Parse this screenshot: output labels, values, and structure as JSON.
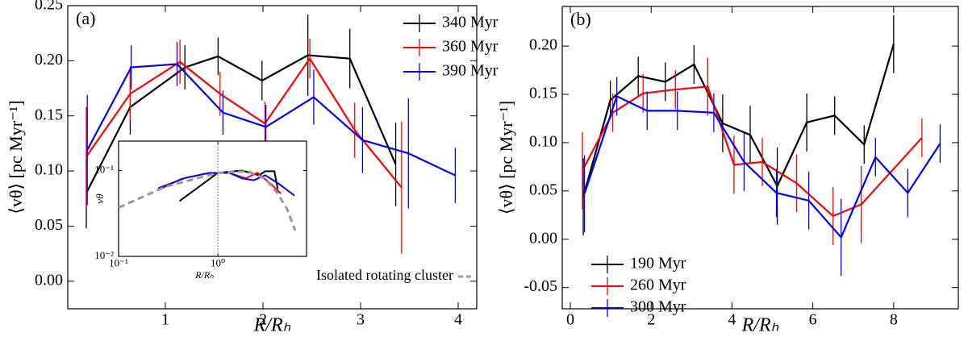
{
  "chart_data": [
    {
      "type": "line",
      "label": "(a)",
      "xlabel": "R/Rₕ",
      "ylabel": "⟨vθ⟩ [pc Myr⁻¹]",
      "xlim": [
        0,
        4.19
      ],
      "ylim": [
        -0.025,
        0.25
      ],
      "xticks": [
        1,
        2,
        3,
        4
      ],
      "yticks": [
        {
          "value": 0,
          "label": "0.00"
        },
        {
          "value": 0.05,
          "label": "0.05"
        },
        {
          "value": 0.1,
          "label": "0.10"
        },
        {
          "value": 0.15,
          "label": "0.15"
        },
        {
          "value": 0.2,
          "label": "0.20"
        },
        {
          "value": 0.25,
          "label": "0.25"
        }
      ],
      "legend": "upper right",
      "series": [
        {
          "name": "340 Myr",
          "color": "#000000",
          "x": [
            0.19,
            0.64,
            1.2,
            1.54,
            1.99,
            2.46,
            2.89,
            3.36
          ],
          "values": [
            0.08,
            0.158,
            0.194,
            0.204,
            0.182,
            0.205,
            0.202,
            0.106
          ],
          "errors": [
            0.032,
            0.025,
            0.02,
            0.017,
            0.018,
            0.037,
            0.027,
            0.038
          ]
        },
        {
          "name": "360 Myr",
          "color": "#ff0000",
          "x": [
            0.19,
            0.64,
            1.15,
            1.56,
            2.02,
            2.48,
            2.94,
            3.42
          ],
          "values": [
            0.113,
            0.17,
            0.199,
            0.17,
            0.143,
            0.202,
            0.137,
            0.085
          ],
          "errors": [
            0.045,
            0.025,
            0.02,
            0.02,
            0.02,
            0.018,
            0.025,
            0.06
          ]
        },
        {
          "name": "390 Myr",
          "color": "#0000ff",
          "x": [
            0.2,
            0.65,
            1.12,
            1.59,
            2.03,
            2.52,
            3.02,
            3.49,
            3.97
          ],
          "values": [
            0.119,
            0.194,
            0.197,
            0.153,
            0.14,
            0.167,
            0.128,
            0.116,
            0.096
          ],
          "errors": [
            0.05,
            0.02,
            0.02,
            0.02,
            0.02,
            0.025,
            0.03,
            0.05,
            0.025
          ]
        }
      ]
    },
    {
      "type": "line",
      "xlabel": "R/Rₕ",
      "ylabel": "vθ",
      "xscale": "log",
      "yscale": "log",
      "xlim": [
        0.1,
        7.8
      ],
      "ylim": [
        0.01,
        0.22
      ],
      "xticks": [
        {
          "value": 0.1,
          "label": "10⁻¹"
        },
        {
          "value": 1,
          "label": "10⁰"
        }
      ],
      "yticks": [
        {
          "value": 0.01,
          "label": "10⁻²"
        },
        {
          "value": 0.1,
          "label": "10⁻¹"
        }
      ],
      "vline": 1,
      "legend": "lower right",
      "series": [
        {
          "color": "#000000",
          "x": [
            0.41,
            1.0,
            1.75,
            2.6,
            3.0,
            3.7,
            4.0
          ],
          "values": [
            0.044,
            0.094,
            0.1,
            0.088,
            0.098,
            0.098,
            0.061
          ]
        },
        {
          "color": "#ff0000",
          "x": [
            0.25,
            0.43,
            0.75,
            1.3,
            1.9,
            2.5,
            3.4,
            4.3
          ],
          "values": [
            0.059,
            0.08,
            0.092,
            0.094,
            0.081,
            0.094,
            0.07,
            0.054
          ]
        },
        {
          "color": "#0000ff",
          "x": [
            0.25,
            0.47,
            0.83,
            1.3,
            1.75,
            2.3,
            3.0,
            4.1,
            5.9
          ],
          "values": [
            0.062,
            0.082,
            0.094,
            0.094,
            0.081,
            0.077,
            0.088,
            0.07,
            0.051
          ],
          "dashed": true
        },
        {
          "name": "Isolated rotating cluster",
          "color": "#999999",
          "dashed": true,
          "x": [
            0.1,
            0.3,
            1,
            2,
            3,
            4,
            5,
            6
          ],
          "values": [
            0.037,
            0.065,
            0.094,
            0.098,
            0.08,
            0.054,
            0.035,
            0.02
          ]
        }
      ]
    },
    {
      "type": "line",
      "label": "(b)",
      "xlabel": "R/Rₕ",
      "ylabel": "⟨vθ⟩ [pc Myr⁻¹]",
      "xlim": [
        -0.2,
        9.6
      ],
      "ylim": [
        -0.072,
        0.241
      ],
      "xticks": [
        0,
        2,
        4,
        6,
        8
      ],
      "yticks": [
        {
          "value": -0.05,
          "label": "-0.05"
        },
        {
          "value": 0,
          "label": "0.00"
        },
        {
          "value": 0.05,
          "label": "0.05"
        },
        {
          "value": 0.1,
          "label": "0.10"
        },
        {
          "value": 0.15,
          "label": "0.15"
        },
        {
          "value": 0.2,
          "label": "0.20"
        }
      ],
      "legend": "lower left",
      "series": [
        {
          "name": "190 Myr",
          "color": "#000000",
          "x": [
            0.32,
            0.99,
            1.68,
            2.35,
            3.06,
            3.77,
            4.45,
            5.12,
            5.85,
            6.54,
            7.27,
            8.0
          ],
          "values": [
            0.044,
            0.144,
            0.169,
            0.163,
            0.181,
            0.12,
            0.108,
            0.055,
            0.121,
            0.128,
            0.098,
            0.202
          ],
          "errors": [
            0.04,
            0.02,
            0.02,
            0.02,
            0.02,
            0.03,
            0.03,
            0.04,
            0.03,
            0.02,
            0.02,
            0.03
          ]
        },
        {
          "name": "260 Myr",
          "color": "#ff0000",
          "x": [
            0.3,
            1.05,
            1.8,
            2.6,
            3.4,
            4.05,
            4.75,
            5.6,
            6.5,
            7.2,
            8.7
          ],
          "values": [
            0.071,
            0.131,
            0.151,
            0.155,
            0.158,
            0.077,
            0.08,
            0.058,
            0.024,
            0.036,
            0.105
          ],
          "errors": [
            0.04,
            0.02,
            0.02,
            0.02,
            0.03,
            0.03,
            0.025,
            0.03,
            0.03,
            0.04,
            0.02
          ]
        },
        {
          "name": "300 Myr",
          "color": "#0000ff",
          "x": [
            0.35,
            1.15,
            1.9,
            2.65,
            3.55,
            4.3,
            5.1,
            5.9,
            6.7,
            7.55,
            8.35,
            9.15
          ],
          "values": [
            0.047,
            0.148,
            0.133,
            0.133,
            0.131,
            0.08,
            0.048,
            0.04,
            0.002,
            0.085,
            0.048,
            0.099
          ],
          "errors": [
            0.04,
            0.02,
            0.02,
            0.02,
            0.02,
            0.03,
            0.025,
            0.03,
            0.04,
            0.02,
            0.025,
            0.02
          ]
        }
      ]
    }
  ]
}
